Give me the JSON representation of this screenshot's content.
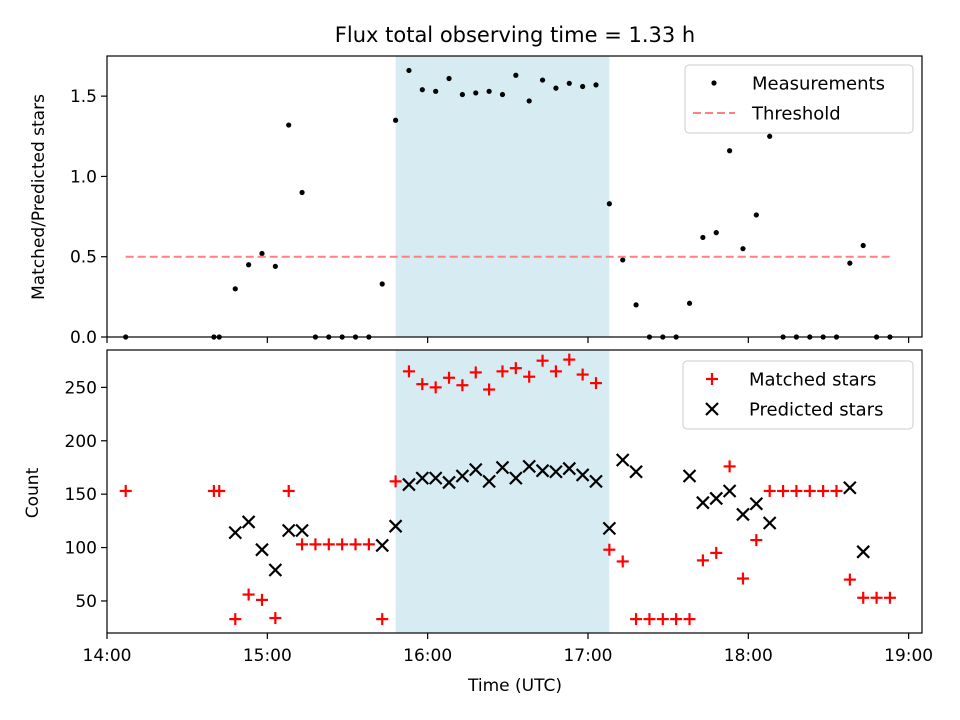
{
  "chart_data": [
    {
      "type": "scatter",
      "title": "Flux total observing time = 1.33 h",
      "ylabel": "Matched/Predicted stars",
      "xlim": [
        "14:00",
        "19:05"
      ],
      "ylim": [
        0,
        1.75
      ],
      "yticks": [
        0.0,
        0.5,
        1.0,
        1.5
      ],
      "ytick_labels": [
        "0.0",
        "0.5",
        "1.0",
        "1.5"
      ],
      "shaded_region": {
        "x0": "15:48",
        "x1": "17:08",
        "color": "#add8e6"
      },
      "legend_position": "top-right",
      "series": [
        {
          "name": "Measurements",
          "marker": "dot",
          "color": "#000000",
          "points": [
            [
              "14:07",
              0
            ],
            [
              "14:40",
              0
            ],
            [
              "14:42",
              0
            ],
            [
              "14:48",
              0.3
            ],
            [
              "14:53",
              0.45
            ],
            [
              "14:58",
              0.52
            ],
            [
              "15:03",
              0.44
            ],
            [
              "15:08",
              1.32
            ],
            [
              "15:13",
              0.9
            ],
            [
              "15:18",
              0
            ],
            [
              "15:23",
              0
            ],
            [
              "15:28",
              0
            ],
            [
              "15:33",
              0
            ],
            [
              "15:38",
              0
            ],
            [
              "15:43",
              0.33
            ],
            [
              "15:48",
              1.35
            ],
            [
              "15:53",
              1.66
            ],
            [
              "15:58",
              1.54
            ],
            [
              "16:03",
              1.53
            ],
            [
              "16:08",
              1.61
            ],
            [
              "16:13",
              1.51
            ],
            [
              "16:18",
              1.52
            ],
            [
              "16:23",
              1.53
            ],
            [
              "16:28",
              1.51
            ],
            [
              "16:33",
              1.63
            ],
            [
              "16:38",
              1.47
            ],
            [
              "16:43",
              1.6
            ],
            [
              "16:48",
              1.55
            ],
            [
              "16:53",
              1.58
            ],
            [
              "16:58",
              1.56
            ],
            [
              "17:03",
              1.57
            ],
            [
              "17:08",
              0.83
            ],
            [
              "17:13",
              0.48
            ],
            [
              "17:18",
              0.2
            ],
            [
              "17:23",
              0
            ],
            [
              "17:28",
              0
            ],
            [
              "17:33",
              0
            ],
            [
              "17:38",
              0.21
            ],
            [
              "17:43",
              0.62
            ],
            [
              "17:48",
              0.65
            ],
            [
              "17:53",
              1.16
            ],
            [
              "17:58",
              0.55
            ],
            [
              "18:03",
              0.76
            ],
            [
              "18:08",
              1.25
            ],
            [
              "18:13",
              0
            ],
            [
              "18:18",
              0
            ],
            [
              "18:23",
              0
            ],
            [
              "18:28",
              0
            ],
            [
              "18:33",
              0
            ],
            [
              "18:38",
              0.46
            ],
            [
              "18:43",
              0.57
            ],
            [
              "18:48",
              0
            ],
            [
              "18:53",
              0
            ]
          ]
        },
        {
          "name": "Threshold",
          "marker": "dashed-line",
          "color": "#ff7f7f",
          "points": [
            [
              "14:07",
              0.5
            ],
            [
              "18:53",
              0.5
            ]
          ]
        }
      ]
    },
    {
      "type": "scatter",
      "xlabel": "Time (UTC)",
      "ylabel": "Count",
      "xlim": [
        "14:00",
        "19:05"
      ],
      "ylim": [
        20,
        285
      ],
      "yticks": [
        50,
        100,
        150,
        200,
        250
      ],
      "xticks": [
        "14:00",
        "15:00",
        "16:00",
        "17:00",
        "18:00",
        "19:00"
      ],
      "shaded_region": {
        "x0": "15:48",
        "x1": "17:08",
        "color": "#add8e6"
      },
      "legend_position": "top-right",
      "series": [
        {
          "name": "Matched stars",
          "marker": "plus",
          "color": "#ff0000",
          "points": [
            [
              "14:07",
              153
            ],
            [
              "14:40",
              153
            ],
            [
              "14:42",
              153
            ],
            [
              "14:48",
              33
            ],
            [
              "14:53",
              56
            ],
            [
              "14:58",
              51
            ],
            [
              "15:03",
              34
            ],
            [
              "15:08",
              153
            ],
            [
              "15:13",
              103
            ],
            [
              "15:18",
              103
            ],
            [
              "15:23",
              103
            ],
            [
              "15:28",
              103
            ],
            [
              "15:33",
              103
            ],
            [
              "15:38",
              103
            ],
            [
              "15:43",
              33
            ],
            [
              "15:48",
              162
            ],
            [
              "15:53",
              265
            ],
            [
              "15:58",
              253
            ],
            [
              "16:03",
              250
            ],
            [
              "16:08",
              259
            ],
            [
              "16:13",
              252
            ],
            [
              "16:18",
              264
            ],
            [
              "16:23",
              248
            ],
            [
              "16:28",
              265
            ],
            [
              "16:33",
              268
            ],
            [
              "16:38",
              260
            ],
            [
              "16:43",
              275
            ],
            [
              "16:48",
              265
            ],
            [
              "16:53",
              276
            ],
            [
              "16:58",
              262
            ],
            [
              "17:03",
              254
            ],
            [
              "17:08",
              98
            ],
            [
              "17:13",
              87
            ],
            [
              "17:18",
              33
            ],
            [
              "17:23",
              33
            ],
            [
              "17:28",
              33
            ],
            [
              "17:33",
              33
            ],
            [
              "17:38",
              33
            ],
            [
              "17:43",
              88
            ],
            [
              "17:48",
              95
            ],
            [
              "17:53",
              176
            ],
            [
              "17:58",
              71
            ],
            [
              "18:03",
              107
            ],
            [
              "18:08",
              153
            ],
            [
              "18:13",
              153
            ],
            [
              "18:18",
              153
            ],
            [
              "18:23",
              153
            ],
            [
              "18:28",
              153
            ],
            [
              "18:33",
              153
            ],
            [
              "18:38",
              70
            ],
            [
              "18:43",
              53
            ],
            [
              "18:48",
              53
            ],
            [
              "18:53",
              53
            ]
          ]
        },
        {
          "name": "Predicted stars",
          "marker": "x",
          "color": "#000000",
          "points": [
            [
              "14:48",
              114
            ],
            [
              "14:53",
              124
            ],
            [
              "14:58",
              98
            ],
            [
              "15:03",
              79
            ],
            [
              "15:08",
              116
            ],
            [
              "15:13",
              116
            ],
            [
              "15:43",
              102
            ],
            [
              "15:48",
              120
            ],
            [
              "15:53",
              159
            ],
            [
              "15:58",
              165
            ],
            [
              "16:03",
              165
            ],
            [
              "16:08",
              161
            ],
            [
              "16:13",
              167
            ],
            [
              "16:18",
              173
            ],
            [
              "16:23",
              162
            ],
            [
              "16:28",
              175
            ],
            [
              "16:33",
              165
            ],
            [
              "16:38",
              176
            ],
            [
              "16:43",
              172
            ],
            [
              "16:48",
              171
            ],
            [
              "16:53",
              174
            ],
            [
              "16:58",
              168
            ],
            [
              "17:03",
              162
            ],
            [
              "17:08",
              118
            ],
            [
              "17:13",
              182
            ],
            [
              "17:18",
              171
            ],
            [
              "17:38",
              167
            ],
            [
              "17:43",
              142
            ],
            [
              "17:48",
              146
            ],
            [
              "17:53",
              153
            ],
            [
              "17:58",
              131
            ],
            [
              "18:03",
              141
            ],
            [
              "18:08",
              123
            ],
            [
              "18:38",
              156
            ],
            [
              "18:43",
              96
            ]
          ]
        }
      ]
    }
  ]
}
